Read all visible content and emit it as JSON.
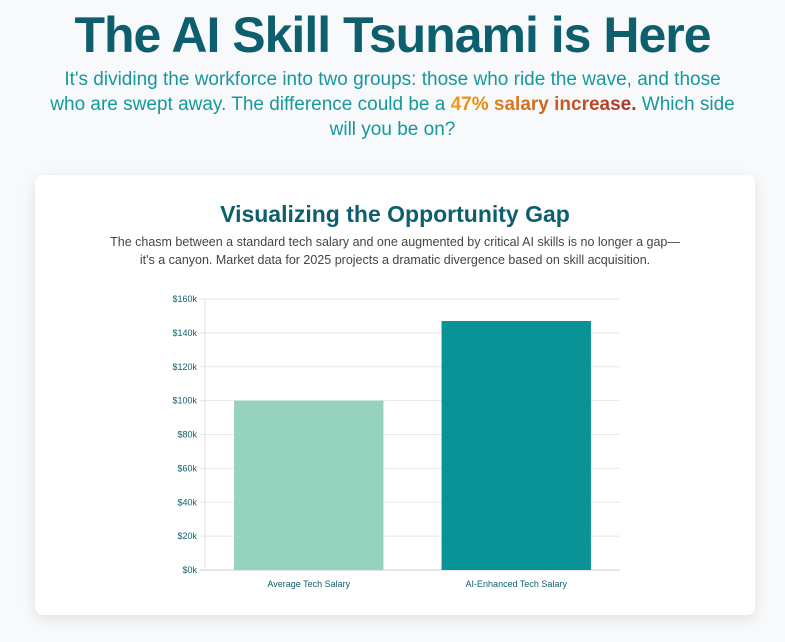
{
  "header": {
    "title": "The AI Skill Tsunami is Here",
    "subtitle_pre": "It's dividing the workforce into two groups: those who ride the wave, and those who are swept away. The difference could be a ",
    "subtitle_highlight": "47% salary increase.",
    "subtitle_post": " Which side will you be on?"
  },
  "card": {
    "title": "Visualizing the Opportunity Gap",
    "description": "The chasm between a standard tech salary and one augmented by critical AI skills is no longer a gap—it's a canyon. Market data for 2025 projects a dramatic divergence based on skill acquisition."
  },
  "chart_data": {
    "type": "bar",
    "categories": [
      "Average Tech Salary",
      "AI-Enhanced Tech Salary"
    ],
    "values": [
      100000,
      147000
    ],
    "ylim": [
      0,
      160000
    ],
    "yticks": [
      "$0k",
      "$20k",
      "$40k",
      "$60k",
      "$80k",
      "$100k",
      "$120k",
      "$140k",
      "$160k"
    ],
    "colors": [
      "#96d3bf",
      "#0a9396"
    ],
    "grid": true
  }
}
